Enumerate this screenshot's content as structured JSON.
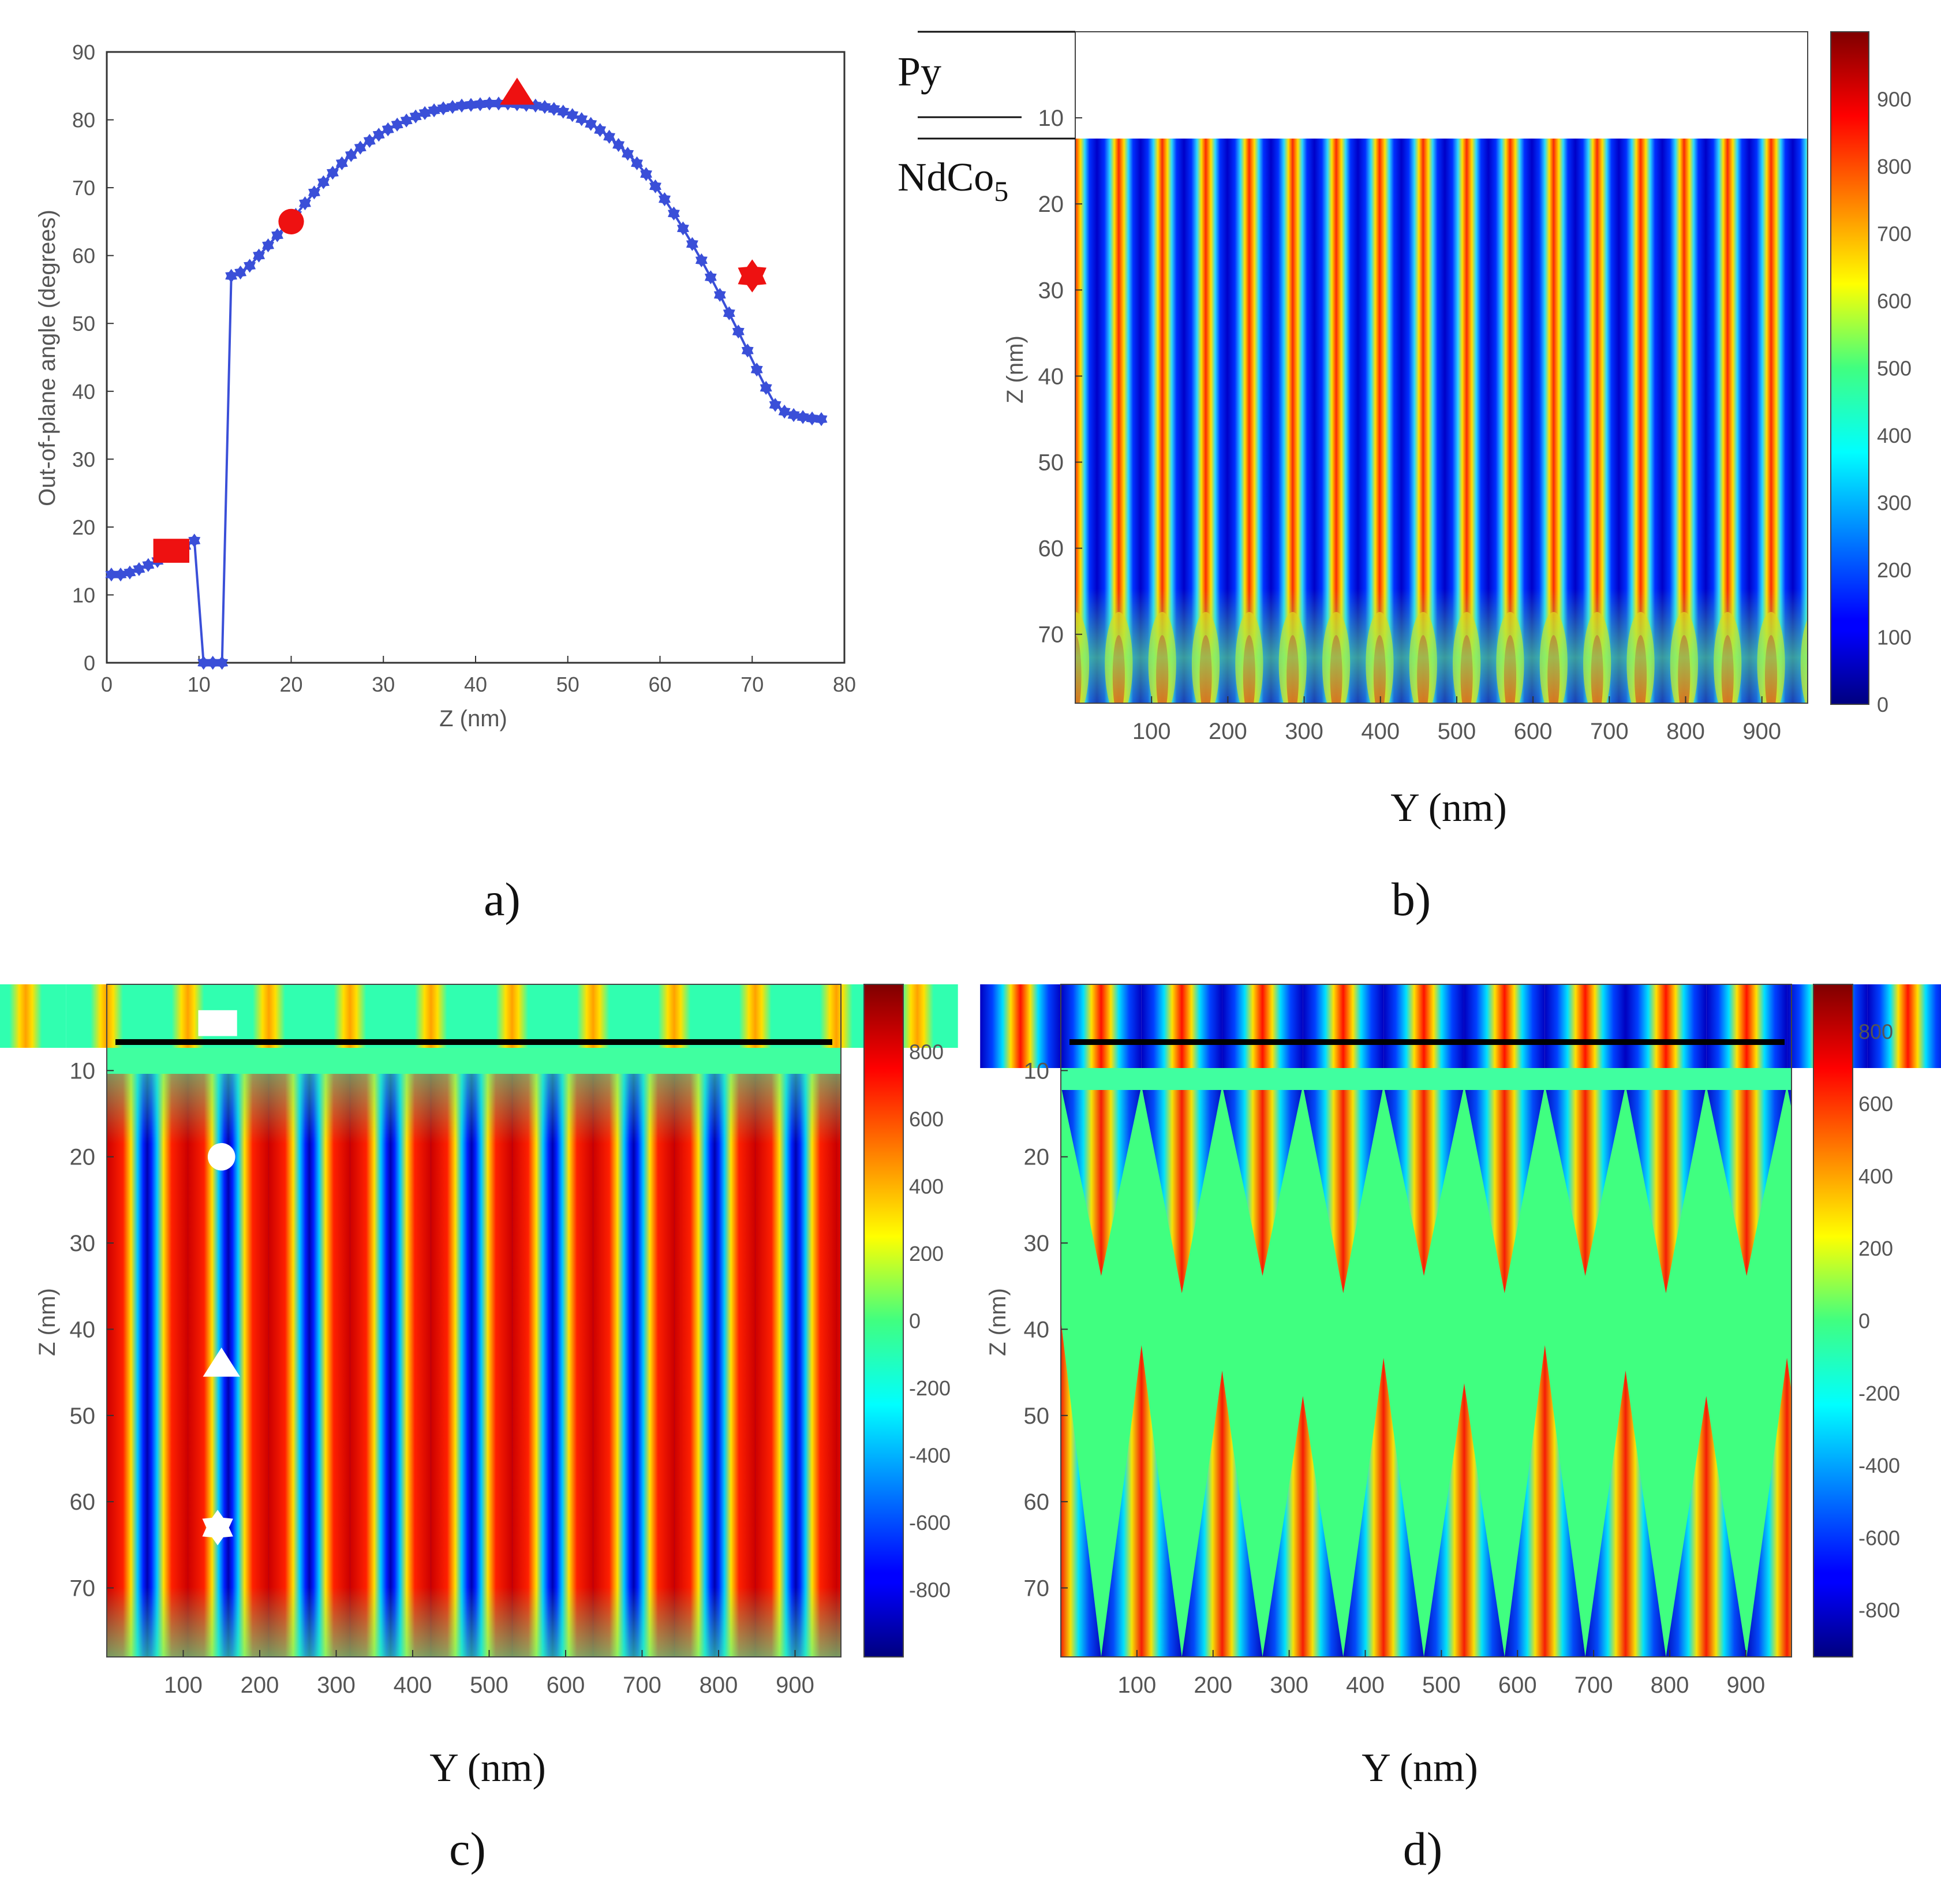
{
  "chart_data": [
    {
      "panel": "a)",
      "type": "line",
      "xlabel": "Z (nm)",
      "ylabel": "Out-of-plane angle (degrees)",
      "xlim": [
        0,
        80
      ],
      "ylim": [
        0,
        90
      ],
      "xticks": [
        0,
        10,
        20,
        30,
        40,
        50,
        60,
        70,
        80
      ],
      "yticks": [
        0,
        10,
        20,
        30,
        40,
        50,
        60,
        70,
        80,
        90
      ],
      "series": [
        {
          "name": "angle",
          "color": "#3a4fd8",
          "x": [
            0.5,
            1.5,
            2.5,
            3.5,
            4.5,
            5.5,
            6.5,
            7.5,
            8.5,
            9.5,
            10.5,
            11.5,
            12.5,
            13.5,
            14.5,
            15.5,
            16.5,
            17.5,
            18.5,
            19.5,
            20.5,
            21.5,
            22.5,
            23.5,
            24.5,
            25.5,
            26.5,
            27.5,
            28.5,
            29.5,
            30.5,
            31.5,
            32.5,
            33.5,
            34.5,
            35.5,
            36.5,
            37.5,
            38.5,
            39.5,
            40.5,
            41.5,
            42.5,
            43.5,
            44.5,
            45.5,
            46.5,
            47.5,
            48.5,
            49.5,
            50.5,
            51.5,
            52.5,
            53.5,
            54.5,
            55.5,
            56.5,
            57.5,
            58.5,
            59.5,
            60.5,
            61.5,
            62.5,
            63.5,
            64.5,
            65.5,
            66.5,
            67.5,
            68.5,
            69.5,
            70.5,
            71.5,
            72.5,
            73.5,
            74.5,
            75.5,
            76.5,
            77.5
          ],
          "y": [
            13,
            13,
            13.3,
            13.8,
            14.4,
            15,
            15.8,
            16.5,
            17.2,
            18,
            0,
            0,
            0,
            57,
            57.5,
            58.5,
            60,
            61.5,
            63,
            64.5,
            66,
            67.7,
            69.3,
            70.8,
            72.2,
            73.6,
            74.8,
            75.9,
            76.9,
            77.8,
            78.6,
            79.3,
            79.9,
            80.5,
            81,
            81.4,
            81.7,
            81.9,
            82.1,
            82.2,
            82.3,
            82.4,
            82.4,
            82.4,
            82.3,
            82.2,
            82.1,
            81.9,
            81.6,
            81.2,
            80.7,
            80.1,
            79.4,
            78.5,
            77.5,
            76.3,
            75,
            73.6,
            72,
            70.2,
            68.3,
            66.2,
            64,
            61.7,
            59.3,
            56.8,
            54.2,
            51.5,
            48.8,
            46,
            43.2,
            40.5,
            38,
            37,
            36.5,
            36.2,
            36.0,
            35.9
          ]
        }
      ],
      "markers": [
        {
          "shape": "square",
          "x": 7,
          "y": 16.5,
          "color": "#ee1111"
        },
        {
          "shape": "circle",
          "x": 20,
          "y": 65,
          "color": "#ee1111"
        },
        {
          "shape": "triangle",
          "x": 44.5,
          "y": 84,
          "color": "#ee1111"
        },
        {
          "shape": "star",
          "x": 70,
          "y": 57,
          "color": "#ee1111"
        }
      ]
    },
    {
      "panel": "b)",
      "type": "heatmap",
      "xlabel": "Y (nm)",
      "ylabel": "Z (nm)",
      "xticks": [
        100,
        200,
        300,
        400,
        500,
        600,
        700,
        800,
        900
      ],
      "yticks": [
        10,
        20,
        30,
        40,
        50,
        60,
        70
      ],
      "xlim": [
        0,
        960
      ],
      "ylim": [
        0,
        78
      ],
      "colorbar_ticks": [
        0,
        100,
        200,
        300,
        400,
        500,
        600,
        700,
        800,
        900
      ],
      "clim": [
        0,
        1000
      ],
      "layer_labels": {
        "top": "Py",
        "bottom": "NdCo",
        "bottom_sub": "5"
      },
      "stripe_period_nm": 57
    },
    {
      "panel": "c)",
      "type": "heatmap",
      "xlabel": "Y (nm)",
      "ylabel": "Z (nm)",
      "xticks": [
        100,
        200,
        300,
        400,
        500,
        600,
        700,
        800,
        900
      ],
      "yticks": [
        10,
        20,
        30,
        40,
        50,
        60,
        70
      ],
      "xlim": [
        0,
        960
      ],
      "ylim": [
        0,
        78
      ],
      "colorbar_ticks": [
        -800,
        -600,
        -400,
        -200,
        0,
        200,
        400,
        600,
        800
      ],
      "clim": [
        -1000,
        1000
      ],
      "stripe_period_nm": 106,
      "markers": [
        {
          "shape": "square",
          "y_nm": 145,
          "z_nm": 4.5,
          "color": "#ffffff"
        },
        {
          "shape": "circle",
          "y_nm": 150,
          "z_nm": 20,
          "color": "#ffffff"
        },
        {
          "shape": "triangle",
          "y_nm": 150,
          "z_nm": 44,
          "color": "#ffffff"
        },
        {
          "shape": "star",
          "y_nm": 145,
          "z_nm": 63,
          "color": "#ffffff"
        }
      ]
    },
    {
      "panel": "d)",
      "type": "heatmap",
      "xlabel": "Y (nm)",
      "ylabel": "Z (nm)",
      "xticks": [
        100,
        200,
        300,
        400,
        500,
        600,
        700,
        800,
        900
      ],
      "yticks": [
        10,
        20,
        30,
        40,
        50,
        60,
        70
      ],
      "xlim": [
        0,
        960
      ],
      "ylim": [
        0,
        78
      ],
      "colorbar_ticks": [
        -800,
        -600,
        -400,
        -200,
        0,
        200,
        400,
        600,
        800
      ],
      "clim": [
        -930,
        930
      ],
      "stripe_period_nm": 106
    }
  ],
  "captions": {
    "a": "a)",
    "b": "b)",
    "c": "c)",
    "d": "d)"
  },
  "colors": {
    "line": "#3a4fd8",
    "marker": "#ee1111",
    "white_marker": "#ffffff"
  }
}
